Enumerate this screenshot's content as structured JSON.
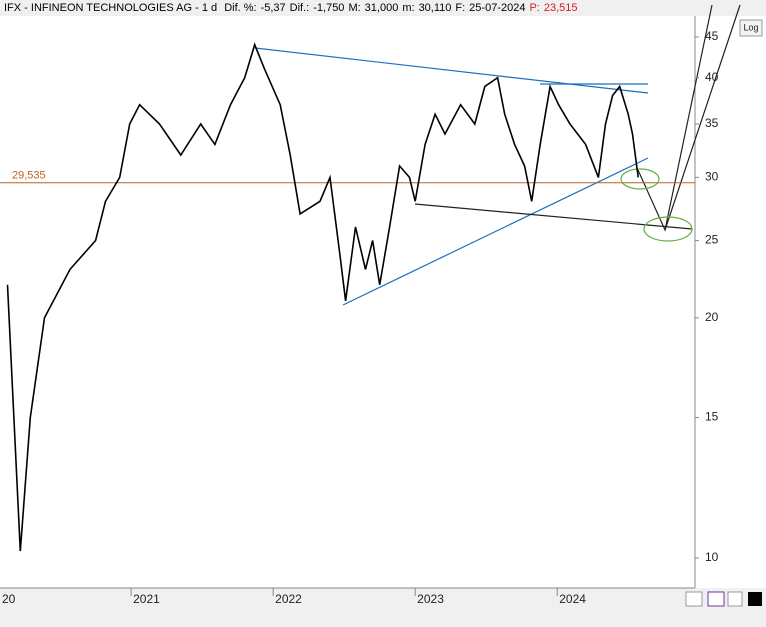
{
  "chart_data": {
    "type": "line",
    "title": "IFX - INFINEON TECHNOLOGIES AG - 1 d",
    "header": [
      {
        "label": "Dif. %:",
        "text": "-5,37"
      },
      {
        "label": "Dif.:",
        "text": "-1,750"
      },
      {
        "label": "M:",
        "text": "31,000"
      },
      {
        "label": "m:",
        "text": "30,110"
      },
      {
        "label": "F:",
        "text": "25-07-2024"
      },
      {
        "label": "P:",
        "text": "23,515"
      }
    ],
    "log_button": "Log",
    "log_scale": true,
    "grid": false,
    "x": [
      2020.13,
      2020.22,
      2020.29,
      2020.39,
      2020.57,
      2020.75,
      2020.82,
      2020.92,
      2020.99,
      2021.06,
      2021.2,
      2021.35,
      2021.49,
      2021.59,
      2021.7,
      2021.8,
      2021.87,
      2021.94,
      2022.05,
      2022.12,
      2022.19,
      2022.33,
      2022.4,
      2022.47,
      2022.51,
      2022.58,
      2022.65,
      2022.7,
      2022.75,
      2022.82,
      2022.89,
      2022.96,
      2023.0,
      2023.07,
      2023.14,
      2023.21,
      2023.32,
      2023.42,
      2023.49,
      2023.58,
      2023.63,
      2023.7,
      2023.77,
      2023.82,
      2023.88,
      2023.95,
      2024.01,
      2024.09,
      2024.2,
      2024.29,
      2024.34,
      2024.39,
      2024.44,
      2024.5,
      2024.53,
      2024.57
    ],
    "series": [
      {
        "name": "IFX",
        "color": "#000000",
        "values": [
          22,
          10.2,
          15,
          20,
          23,
          25,
          28,
          30,
          35,
          37,
          35,
          32,
          35,
          33,
          37,
          40,
          44,
          41,
          37,
          32,
          27,
          28,
          30,
          24,
          21,
          26,
          23,
          25,
          22,
          26,
          31,
          30,
          28,
          33,
          36,
          34,
          37,
          35,
          39,
          40,
          36,
          33,
          31,
          28,
          33,
          39,
          37,
          35,
          33,
          30,
          35,
          38,
          39,
          36,
          34,
          30
        ]
      }
    ],
    "price_line": {
      "value": 29.535,
      "label": "29,535",
      "color": "#c06020"
    },
    "xlim": [
      2020.077,
      2024.97
    ],
    "xticks": [
      {
        "value": 2020,
        "label": "20"
      },
      2021,
      2022,
      2023,
      2024
    ],
    "ylim": [
      9.17,
      47.8
    ],
    "yticks": [
      10,
      15,
      20,
      25,
      30,
      35,
      40,
      45
    ]
  }
}
